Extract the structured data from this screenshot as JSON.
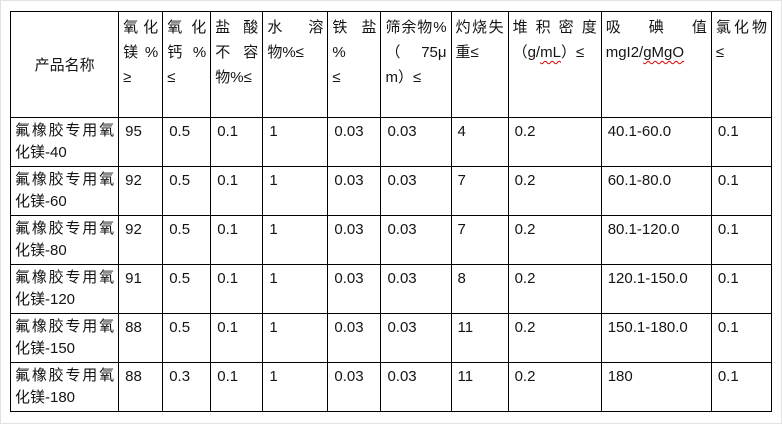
{
  "table": {
    "header": {
      "product_name": "产品名称",
      "mgo": {
        "l1": "氧化",
        "l2": "镁 %",
        "l3": "≥"
      },
      "cao": {
        "l1": "氧 化",
        "l2": "钙 %",
        "l3": "≤"
      },
      "hcl_insoluble": {
        "l1": "盐 酸",
        "l2": "不 容",
        "l3": "物%≤"
      },
      "water_soluble": {
        "l1": "水 溶",
        "l2": "物%≤"
      },
      "iron_salt": {
        "l1": "铁 盐 %",
        "l2": "≤"
      },
      "sieve_residue": {
        "l1": "筛余物%",
        "l2": "（75μ",
        "l3": "m）≤"
      },
      "ignition_loss": {
        "l1": "灼烧失",
        "l2": "重≤"
      },
      "bulk_density": {
        "l1": "堆 积 密 度",
        "l2_pre": "（g/",
        "l2_wavy": "mL",
        "l2_post": "）≤"
      },
      "iodine_value": {
        "l1": "吸　碘　值",
        "l2_pre": "mgI2/",
        "l2_wavy": "gMgO",
        "l2_post": ""
      },
      "chloride": {
        "l1": "氯化物",
        "l2": "≤"
      }
    },
    "rows": [
      {
        "name": "氟橡胶专用氧化镁-40",
        "values": [
          "95",
          "0.5",
          "0.1",
          "1",
          "0.03",
          "0.03",
          "4",
          "0.2",
          "40.1-60.0",
          "0.1"
        ]
      },
      {
        "name": "氟橡胶专用氧化镁-60",
        "values": [
          "92",
          "0.5",
          "0.1",
          "1",
          "0.03",
          "0.03",
          "7",
          "0.2",
          "60.1-80.0",
          "0.1"
        ]
      },
      {
        "name": "氟橡胶专用氧化镁-80",
        "values": [
          "92",
          "0.5",
          "0.1",
          "1",
          "0.03",
          "0.03",
          "7",
          "0.2",
          "80.1-120.0",
          "0.1"
        ]
      },
      {
        "name": "氟橡胶专用氧化镁-120",
        "values": [
          "91",
          "0.5",
          "0.1",
          "1",
          "0.03",
          "0.03",
          "8",
          "0.2",
          "120.1-150.0",
          "0.1"
        ]
      },
      {
        "name": "氟橡胶专用氧化镁-150",
        "values": [
          "88",
          "0.5",
          "0.1",
          "1",
          "0.03",
          "0.03",
          "11",
          "0.2",
          "150.1-180.0",
          "0.1"
        ]
      },
      {
        "name": "氟橡胶专用氧化镁-180",
        "values": [
          "88",
          "0.3",
          "0.1",
          "1",
          "0.03",
          "0.03",
          "11",
          "0.2",
          "180",
          "0.1"
        ]
      }
    ]
  },
  "colors": {
    "grid": "#000000",
    "text": "#141414",
    "spellcheck_wavy": "#dd0000",
    "background": "#ffffff"
  }
}
